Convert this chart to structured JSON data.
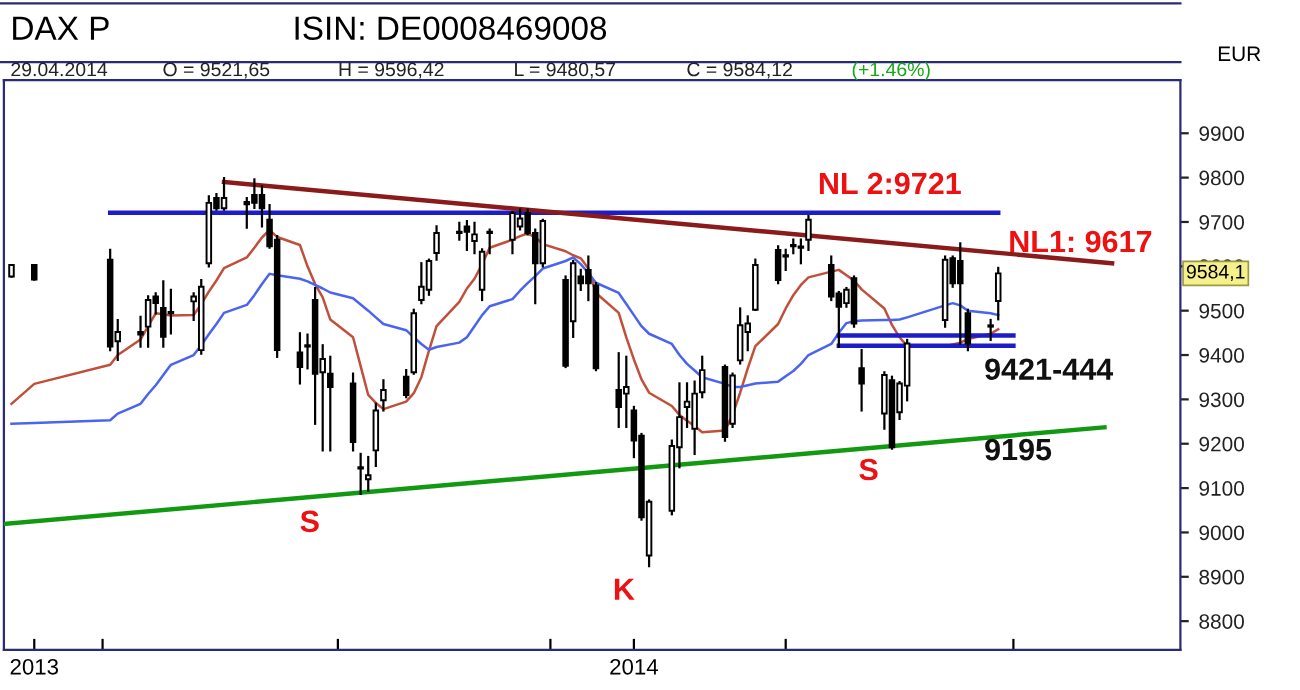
{
  "chart_data": {
    "type": "candlestick",
    "title": "DAX P",
    "subtitle": "ISIN: DE0008469008",
    "ylabel": "EUR",
    "annotations": [
      "29.04.2014",
      "O = 9521,65",
      "H = 9596,42",
      "L = 9480,57",
      "C = 9584,12",
      "(+1.46%)",
      {
        "text": "9584,1",
        "y": 9584.1
      },
      "NL 2:9721",
      "NL1: 9617",
      "9421-444",
      "9195",
      "S",
      "K",
      "S"
    ],
    "x": [
      "2013-12-20",
      "2013-12-23",
      "2014-01-02",
      "2014-01-03",
      "2014-01-06",
      "2014-01-07",
      "2014-01-08",
      "2014-01-09",
      "2014-01-10",
      "2014-01-13",
      "2014-01-14",
      "2014-01-15",
      "2014-01-16",
      "2014-01-17",
      "2014-01-20",
      "2014-01-21",
      "2014-01-22",
      "2014-01-23",
      "2014-01-24",
      "2014-01-27",
      "2014-01-28",
      "2014-01-29",
      "2014-01-30",
      "2014-01-31",
      "2014-02-03",
      "2014-02-04",
      "2014-02-05",
      "2014-02-06",
      "2014-02-07",
      "2014-02-10",
      "2014-02-11",
      "2014-02-12",
      "2014-02-13",
      "2014-02-14",
      "2014-02-17",
      "2014-02-18",
      "2014-02-19",
      "2014-02-20",
      "2014-02-21",
      "2014-02-24",
      "2014-02-25",
      "2014-02-26",
      "2014-02-27",
      "2014-02-28",
      "2014-03-03",
      "2014-03-04",
      "2014-03-05",
      "2014-03-06",
      "2014-03-07",
      "2014-03-10",
      "2014-03-11",
      "2014-03-12",
      "2014-03-13",
      "2014-03-14",
      "2014-03-17",
      "2014-03-18",
      "2014-03-19",
      "2014-03-20",
      "2014-03-21",
      "2014-03-24",
      "2014-03-25",
      "2014-03-26",
      "2014-03-27",
      "2014-03-28",
      "2014-03-31",
      "2014-04-01",
      "2014-04-02",
      "2014-04-03",
      "2014-04-04",
      "2014-04-07",
      "2014-04-08",
      "2014-04-09",
      "2014-04-10",
      "2014-04-11",
      "2014-04-14",
      "2014-04-15",
      "2014-04-16",
      "2014-04-17",
      "2014-04-22",
      "2014-04-23",
      "2014-04-24",
      "2014-04-25",
      "2014-04-28",
      "2014-04-29"
    ],
    "ohlc": [
      [
        9577,
        9603,
        9577,
        9603
      ],
      [
        9603,
        9603,
        9570,
        9570
      ],
      [
        9615,
        9637,
        9411,
        9419
      ],
      [
        9431,
        9479,
        9389,
        9452
      ],
      [
        9452,
        9486,
        9419,
        9446
      ],
      [
        9464,
        9532,
        9419,
        9524
      ],
      [
        9532,
        9539,
        9494,
        9517
      ],
      [
        9506,
        9566,
        9419,
        9441
      ],
      [
        9494,
        9547,
        9449,
        9497
      ],
      [
        9521,
        9539,
        9479,
        9532
      ],
      [
        9411,
        9569,
        9403,
        9554
      ],
      [
        9607,
        9758,
        9600,
        9743
      ],
      [
        9754,
        9763,
        9728,
        9731
      ],
      [
        9731,
        9799,
        9728,
        9754
      ],
      [
        9745,
        9754,
        9687,
        9740
      ],
      [
        9761,
        9796,
        9732,
        9743
      ],
      [
        9761,
        9781,
        9690,
        9731
      ],
      [
        9705,
        9738,
        9642,
        9645
      ],
      [
        9660,
        9668,
        9396,
        9411
      ],
      [
        9406,
        9449,
        9336,
        9373
      ],
      [
        9419,
        9446,
        9370,
        9422
      ],
      [
        9524,
        9551,
        9245,
        9358
      ],
      [
        9361,
        9422,
        9185,
        9391
      ],
      [
        9358,
        9396,
        9185,
        9328
      ],
      [
        9336,
        9358,
        9185,
        9204
      ],
      [
        9144,
        9177,
        9087,
        9147
      ],
      [
        9120,
        9170,
        9094,
        9129
      ],
      [
        9185,
        9290,
        9150,
        9275
      ],
      [
        9298,
        9343,
        9275,
        9321
      ],
      [
        9351,
        9366,
        9305,
        9310
      ],
      [
        9361,
        9502,
        9358,
        9494
      ],
      [
        9524,
        9607,
        9517,
        9554
      ],
      [
        9547,
        9615,
        9536,
        9612
      ],
      [
        9630,
        9690,
        9615,
        9675
      ],
      [
        9675,
        9698,
        9660,
        9678
      ],
      [
        9690,
        9702,
        9637,
        9678
      ],
      [
        9657,
        9698,
        9630,
        9672
      ],
      [
        9547,
        9638,
        9524,
        9633
      ],
      [
        9675,
        9683,
        9630,
        9678
      ],
      [
        9660,
        9723,
        9630,
        9720
      ],
      [
        9690,
        9728,
        9683,
        9708
      ],
      [
        9720,
        9728,
        9672,
        9675
      ],
      [
        9675,
        9683,
        9517,
        9607
      ],
      [
        9607,
        9705,
        9600,
        9702
      ],
      [
        9569,
        9577,
        9373,
        9376
      ],
      [
        9476,
        9612,
        9441,
        9607
      ],
      [
        9577,
        9592,
        9547,
        9562
      ],
      [
        9592,
        9622,
        9524,
        9562
      ],
      [
        9557,
        9562,
        9366,
        9370
      ],
      [
        9321,
        9404,
        9238,
        9283
      ],
      [
        9313,
        9396,
        9238,
        9328
      ],
      [
        9275,
        9283,
        9170,
        9207
      ],
      [
        9218,
        9222,
        9029,
        9034
      ],
      [
        8948,
        9072,
        8924,
        9069
      ],
      [
        9049,
        9207,
        9041,
        9195
      ],
      [
        9192,
        9336,
        9147,
        9260
      ],
      [
        9283,
        9336,
        9238,
        9295
      ],
      [
        9234,
        9340,
        9177,
        9313
      ],
      [
        9316,
        9396,
        9305,
        9366
      ],
      [
        9373,
        9376,
        9207,
        9215
      ],
      [
        9245,
        9358,
        9238,
        9354
      ],
      [
        9388,
        9505,
        9381,
        9467
      ],
      [
        9452,
        9487,
        9411,
        9471
      ],
      [
        9502,
        9615,
        9502,
        9603
      ],
      [
        9637,
        9645,
        9562,
        9569
      ],
      [
        9622,
        9637,
        9592,
        9625
      ],
      [
        9645,
        9660,
        9630,
        9648
      ],
      [
        9645,
        9660,
        9607,
        9642
      ],
      [
        9660,
        9713,
        9637,
        9705
      ],
      [
        9603,
        9622,
        9524,
        9532
      ],
      [
        9539,
        9542,
        9419,
        9509
      ],
      [
        9517,
        9551,
        9509,
        9547
      ],
      [
        9573,
        9577,
        9464,
        9471
      ],
      [
        9370,
        9411,
        9275,
        9336
      ],
      [
        9268,
        9361,
        9234,
        9355
      ],
      [
        9343,
        9351,
        9189,
        9192
      ],
      [
        9271,
        9339,
        9256,
        9336
      ],
      [
        9331,
        9434,
        9298,
        9426
      ],
      [
        9479,
        9622,
        9464,
        9615
      ],
      [
        9618,
        9622,
        9554,
        9562
      ],
      [
        9612,
        9652,
        9426,
        9562
      ],
      [
        9494,
        9502,
        9411,
        9426
      ],
      [
        9464,
        9479,
        9434,
        9467
      ],
      [
        9521.65,
        9596.42,
        9480.57,
        9584.12
      ]
    ],
    "series": [
      {
        "type": "line",
        "color": "#c0503a",
        "values": [
          9290,
          9335,
          9378,
          9400,
          9435,
          9465,
          9494,
          9492,
          9489,
          9490,
          9515,
          9543,
          9568,
          9596,
          9620,
          9642,
          9665,
          9682,
          9666,
          9648,
          9600,
          9560,
          9530,
          9480,
          9440,
          9375,
          9310,
          9292,
          9278,
          9295,
          9314,
          9350,
          9410,
          9465,
          9520,
          9550,
          9572,
          9605,
          9642,
          9660,
          9668,
          9674,
          9666,
          9650,
          9634,
          9625,
          9618,
          9595,
          9540,
          9495,
          9440,
          9390,
          9345,
          9315,
          9285,
          9265,
          9252,
          9240,
          9226,
          9230,
          9265,
          9315,
          9370,
          9420,
          9470,
          9505,
          9535,
          9558,
          9575,
          9588,
          9592,
          9580,
          9568,
          9548,
          9505,
          9468,
          9440,
          9420,
          9420,
          9424,
          9428,
          9436,
          9448,
          9458
        ]
      },
      {
        "type": "line",
        "color": "#4a64f0",
        "values": [
          9245,
          9247,
          9253,
          9268,
          9290,
          9312,
          9332,
          9355,
          9378,
          9400,
          9422,
          9447,
          9470,
          9495,
          9513,
          9535,
          9560,
          9583,
          9580,
          9572,
          9566,
          9558,
          9550,
          9541,
          9528,
          9514,
          9500,
          9485,
          9470,
          9456,
          9440,
          9425,
          9412,
          9418,
          9428,
          9440,
          9465,
          9490,
          9510,
          9526,
          9545,
          9562,
          9578,
          9595,
          9612,
          9620,
          9605,
          9585,
          9563,
          9540,
          9515,
          9490,
          9465,
          9448,
          9425,
          9400,
          9380,
          9365,
          9350,
          9335,
          9328,
          9328,
          9332,
          9336,
          9340,
          9352,
          9364,
          9380,
          9400,
          9425,
          9450,
          9472,
          9476,
          9478,
          9479,
          9479,
          9480,
          9485,
          9512,
          9517,
          9512,
          9500,
          9494,
          9490
        ]
      },
      {
        "type": "line",
        "color": "#1c1cc8",
        "x": [
          "2014-01-02",
          "2014-04-29"
        ],
        "values": [
          9721,
          9721
        ]
      },
      {
        "type": "line",
        "color": "#8b1a1a",
        "x": [
          "2014-01-17",
          "2014-05-14"
        ],
        "values": [
          9790,
          9607
        ]
      },
      {
        "type": "line",
        "color": "#119911",
        "x": [
          "2013-12-19",
          "2014-05-13"
        ],
        "values": [
          9019,
          9237
        ]
      },
      {
        "type": "line",
        "color": "#1c1cc8",
        "x": [
          "2014-04-08",
          "2014-05-01"
        ],
        "values": [
          9444,
          9444
        ]
      },
      {
        "type": "line",
        "color": "#1c1cc8",
        "x": [
          "2014-04-08",
          "2014-05-01"
        ],
        "values": [
          9421,
          9421
        ]
      }
    ],
    "xlim": [
      "2013-12-19",
      "2014-05-23"
    ],
    "xticks": [
      {
        "value": "2013-12-23",
        "label": "2013"
      },
      {
        "value": "2014-01-01",
        "label": null
      },
      {
        "value": "2014-02-01",
        "label": null
      },
      {
        "value": "2014-03-01",
        "label": null
      },
      {
        "value": "2014-03-12",
        "label": "2014"
      },
      {
        "value": "2014-04-01",
        "label": null
      },
      {
        "value": "2014-05-01",
        "label": null
      }
    ],
    "ylim": [
      8735,
      10020
    ],
    "yticks": [
      8800,
      8900,
      9000,
      9100,
      9200,
      9300,
      9400,
      9500,
      9600,
      9700,
      9800,
      9900
    ]
  }
}
